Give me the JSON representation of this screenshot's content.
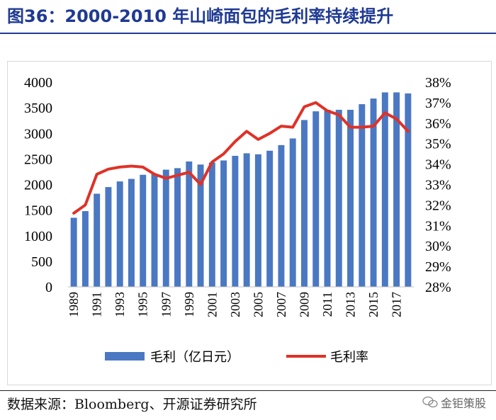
{
  "figure": {
    "title": "图36：2000-2010 年山崎面包的毛利率持续提升",
    "source": "数据来源：Bloomberg、开源证券研究所",
    "watermark": "金钜策股"
  },
  "colors": {
    "bar": "#4a78c2",
    "line": "#e03127",
    "title": "#1f3a93"
  },
  "chart_data": {
    "type": "bar",
    "x": [
      1989,
      1990,
      1991,
      1992,
      1993,
      1994,
      1995,
      1996,
      1997,
      1998,
      1999,
      2000,
      2001,
      2002,
      2003,
      2004,
      2005,
      2006,
      2007,
      2008,
      2009,
      2010,
      2011,
      2012,
      2013,
      2014,
      2015,
      2016,
      2017,
      2018
    ],
    "x_tick_labels": [
      "1989",
      "1991",
      "1993",
      "1995",
      "1997",
      "1999",
      "2001",
      "2003",
      "2005",
      "2007",
      "2009",
      "2011",
      "2013",
      "2015",
      "2017"
    ],
    "series": [
      {
        "name": "毛利（亿日元）",
        "type": "bar",
        "axis": "left",
        "values": [
          1350,
          1480,
          1820,
          1950,
          2060,
          2110,
          2190,
          2200,
          2290,
          2320,
          2450,
          2390,
          2430,
          2470,
          2560,
          2610,
          2590,
          2660,
          2770,
          2900,
          3260,
          3430,
          3460,
          3460,
          3460,
          3570,
          3680,
          3800,
          3800,
          3780
        ]
      },
      {
        "name": "毛利率",
        "type": "line",
        "axis": "right",
        "values": [
          31.6,
          32.0,
          33.5,
          33.75,
          33.85,
          33.9,
          33.85,
          33.5,
          33.3,
          33.45,
          33.6,
          33.0,
          34.1,
          34.5,
          35.1,
          35.6,
          35.2,
          35.5,
          35.85,
          35.8,
          36.8,
          37.0,
          36.6,
          36.4,
          35.8,
          35.8,
          35.85,
          36.5,
          36.2,
          35.6
        ]
      }
    ],
    "y_left": {
      "min": 0,
      "max": 4000,
      "ticks": [
        "0",
        "500",
        "1000",
        "1500",
        "2000",
        "2500",
        "3000",
        "3500",
        "4000"
      ]
    },
    "y_right": {
      "min": 28,
      "max": 38,
      "ticks": [
        "28%",
        "29%",
        "30%",
        "31%",
        "32%",
        "33%",
        "34%",
        "35%",
        "36%",
        "37%",
        "38%"
      ]
    },
    "legend": [
      "毛利（亿日元）",
      "毛利率"
    ],
    "legend_position": "bottom",
    "grid": false
  }
}
